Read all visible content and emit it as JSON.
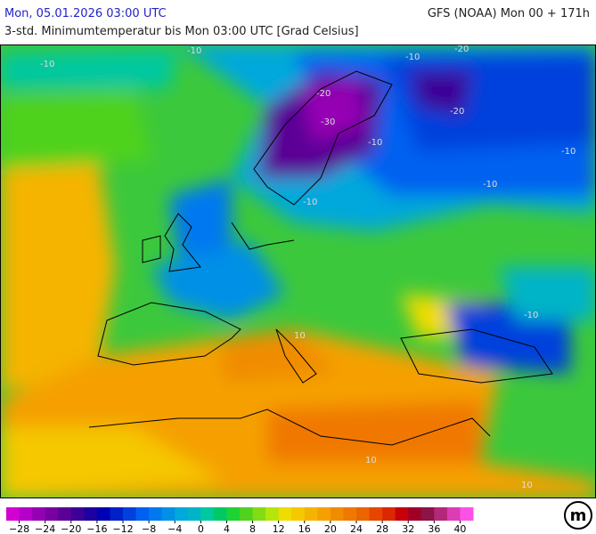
{
  "header": {
    "time": "Mon, 05.01.2026 03:00 UTC",
    "model": "GFS (NOAA) Mon 00 + 171h",
    "subtitle": "3-std. Minimumtemperatur bis Mon 03:00 UTC [Grad Celsius]"
  },
  "map_labels": [
    "-10",
    "-10",
    "-20",
    "-20",
    "-30",
    "-20",
    "-10",
    "-10",
    "-10",
    "-10",
    "-10",
    "-10",
    "10",
    "10",
    "10"
  ],
  "legend": {
    "colors": [
      "#d200d2",
      "#b400c8",
      "#9600b4",
      "#7800a0",
      "#5a0096",
      "#3c0096",
      "#1e00a0",
      "#0000b4",
      "#0020c8",
      "#0040dc",
      "#0060f0",
      "#0078f0",
      "#0090e6",
      "#00a8dc",
      "#00b4c8",
      "#00c8a0",
      "#00c864",
      "#1ed232",
      "#50d21e",
      "#82dc14",
      "#b4e60a",
      "#f0dc00",
      "#f5c800",
      "#f5b400",
      "#f5a000",
      "#f08c00",
      "#f07800",
      "#eb6400",
      "#e64600",
      "#dc2800",
      "#c8000a",
      "#a00028",
      "#8c1446",
      "#b4287a",
      "#dc3cb4",
      "#ff50e6"
    ],
    "labels": [
      "−28",
      "−24",
      "−20",
      "−16",
      "−12",
      "−8",
      "−4",
      "0",
      "4",
      "8",
      "12",
      "16",
      "20",
      "24",
      "28",
      "32",
      "36",
      "40"
    ]
  },
  "logo": "m"
}
